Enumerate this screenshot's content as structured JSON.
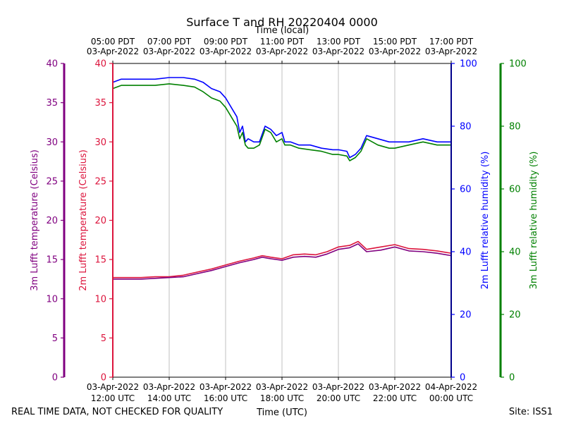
{
  "chart_data": {
    "type": "line",
    "title": "Surface T and RH 20220404 0000",
    "xlabel_top": "Time (local)",
    "xlabel_bottom": "Time (UTC)",
    "footer_left": "REAL TIME DATA, NOT CHECKED FOR QUALITY",
    "footer_right": "Site: ISS1",
    "x_range_hours_utc": [
      12,
      24
    ],
    "top_ticks": [
      {
        "h": 12,
        "l1": "05:00 PDT",
        "l2": "03-Apr-2022"
      },
      {
        "h": 14,
        "l1": "07:00 PDT",
        "l2": "03-Apr-2022"
      },
      {
        "h": 16,
        "l1": "09:00 PDT",
        "l2": "03-Apr-2022"
      },
      {
        "h": 18,
        "l1": "11:00 PDT",
        "l2": "03-Apr-2022"
      },
      {
        "h": 20,
        "l1": "13:00 PDT",
        "l2": "03-Apr-2022"
      },
      {
        "h": 22,
        "l1": "15:00 PDT",
        "l2": "03-Apr-2022"
      },
      {
        "h": 24,
        "l1": "17:00 PDT",
        "l2": "03-Apr-2022"
      }
    ],
    "bottom_ticks": [
      {
        "h": 12,
        "l1": "03-Apr-2022",
        "l2": "12:00 UTC"
      },
      {
        "h": 14,
        "l1": "03-Apr-2022",
        "l2": "14:00 UTC"
      },
      {
        "h": 16,
        "l1": "03-Apr-2022",
        "l2": "16:00 UTC"
      },
      {
        "h": 18,
        "l1": "03-Apr-2022",
        "l2": "18:00 UTC"
      },
      {
        "h": 20,
        "l1": "03-Apr-2022",
        "l2": "20:00 UTC"
      },
      {
        "h": 22,
        "l1": "03-Apr-2022",
        "l2": "22:00 UTC"
      },
      {
        "h": 24,
        "l1": "04-Apr-2022",
        "l2": "00:00 UTC"
      }
    ],
    "axes": {
      "t3m": {
        "label": "3m Lufft temperature (Celsius)",
        "range": [
          0,
          40
        ],
        "ticks": [
          "0",
          "5",
          "10",
          "15",
          "20",
          "25",
          "30",
          "35",
          "40"
        ],
        "color": "#800080"
      },
      "t2m": {
        "label": "2m Lufft temperature (Celsius)",
        "range": [
          0,
          40
        ],
        "ticks": [
          "0",
          "5",
          "10",
          "15",
          "20",
          "25",
          "30",
          "35",
          "40"
        ],
        "color": "#dc143c"
      },
      "rh2m": {
        "label": "2m Lufft relative humidity (%)",
        "range": [
          0,
          100
        ],
        "ticks": [
          "0",
          "20",
          "40",
          "60",
          "80",
          "100"
        ],
        "color": "#0000ff"
      },
      "rh3m": {
        "label": "3m Lufft relative humidity (%)",
        "range": [
          0,
          100
        ],
        "ticks": [
          "0",
          "20",
          "40",
          "60",
          "80",
          "100"
        ],
        "color": "#008000"
      }
    },
    "series": [
      {
        "name": "2m Lufft relative humidity",
        "axis": "rh2m",
        "color": "#0000ff",
        "x": [
          12.0,
          12.3,
          12.6,
          13.0,
          13.5,
          14.0,
          14.5,
          14.9,
          15.2,
          15.5,
          15.8,
          16.0,
          16.2,
          16.4,
          16.5,
          16.6,
          16.7,
          16.8,
          17.0,
          17.2,
          17.4,
          17.6,
          17.8,
          18.0,
          18.1,
          18.3,
          18.6,
          19.0,
          19.4,
          19.8,
          20.0,
          20.3,
          20.4,
          20.6,
          20.8,
          21.0,
          21.4,
          21.8,
          22.0,
          22.5,
          23.0,
          23.5,
          24.0
        ],
        "y": [
          94,
          95,
          95,
          95,
          95,
          95.5,
          95.5,
          95,
          94,
          92,
          91,
          89,
          86,
          83,
          78,
          80,
          75,
          76,
          75,
          75,
          80,
          79,
          77,
          78,
          75,
          75,
          74,
          74,
          73,
          72.5,
          72.5,
          72,
          70,
          71,
          73,
          77,
          76,
          75,
          75,
          75,
          76,
          75,
          75
        ]
      },
      {
        "name": "3m Lufft relative humidity",
        "axis": "rh3m",
        "color": "#008000",
        "x": [
          12.0,
          12.3,
          12.6,
          13.0,
          13.5,
          14.0,
          14.5,
          14.9,
          15.2,
          15.5,
          15.8,
          16.0,
          16.2,
          16.4,
          16.5,
          16.6,
          16.7,
          16.8,
          17.0,
          17.2,
          17.4,
          17.6,
          17.8,
          18.0,
          18.1,
          18.3,
          18.6,
          19.0,
          19.4,
          19.8,
          20.0,
          20.3,
          20.4,
          20.6,
          20.8,
          21.0,
          21.4,
          21.8,
          22.0,
          22.5,
          23.0,
          23.5,
          24.0
        ],
        "y": [
          92,
          93,
          93,
          93,
          93,
          93.5,
          93,
          92.5,
          91,
          89,
          88,
          86,
          83,
          80,
          76,
          78,
          74,
          73,
          73,
          74,
          79,
          78,
          75,
          76,
          74,
          74,
          73,
          72.5,
          72,
          71,
          71,
          70.5,
          69,
          70,
          72,
          76,
          74,
          73,
          73,
          74,
          75,
          74,
          74
        ]
      },
      {
        "name": "2m Lufft temperature",
        "axis": "t2m",
        "color": "#dc143c",
        "x": [
          12.0,
          12.5,
          13.0,
          13.5,
          14.0,
          14.5,
          15.0,
          15.5,
          16.0,
          16.5,
          17.0,
          17.3,
          17.6,
          18.0,
          18.4,
          18.8,
          19.2,
          19.6,
          20.0,
          20.4,
          20.7,
          21.0,
          21.5,
          22.0,
          22.5,
          23.0,
          23.5,
          24.0
        ],
        "y": [
          12.7,
          12.7,
          12.7,
          12.8,
          12.8,
          13.0,
          13.4,
          13.8,
          14.3,
          14.8,
          15.2,
          15.5,
          15.3,
          15.1,
          15.6,
          15.7,
          15.6,
          16.0,
          16.6,
          16.8,
          17.3,
          16.3,
          16.6,
          16.9,
          16.4,
          16.3,
          16.1,
          15.8
        ]
      },
      {
        "name": "3m Lufft temperature",
        "axis": "t3m",
        "color": "#800080",
        "x": [
          12.0,
          12.5,
          13.0,
          13.5,
          14.0,
          14.5,
          15.0,
          15.5,
          16.0,
          16.5,
          17.0,
          17.3,
          17.6,
          18.0,
          18.4,
          18.8,
          19.2,
          19.6,
          20.0,
          20.4,
          20.7,
          21.0,
          21.5,
          22.0,
          22.5,
          23.0,
          23.5,
          24.0
        ],
        "y": [
          12.5,
          12.5,
          12.5,
          12.6,
          12.7,
          12.8,
          13.2,
          13.6,
          14.1,
          14.6,
          15.0,
          15.3,
          15.1,
          14.9,
          15.3,
          15.4,
          15.3,
          15.7,
          16.3,
          16.5,
          17.0,
          16.0,
          16.2,
          16.6,
          16.1,
          16.0,
          15.8,
          15.5
        ]
      }
    ]
  }
}
